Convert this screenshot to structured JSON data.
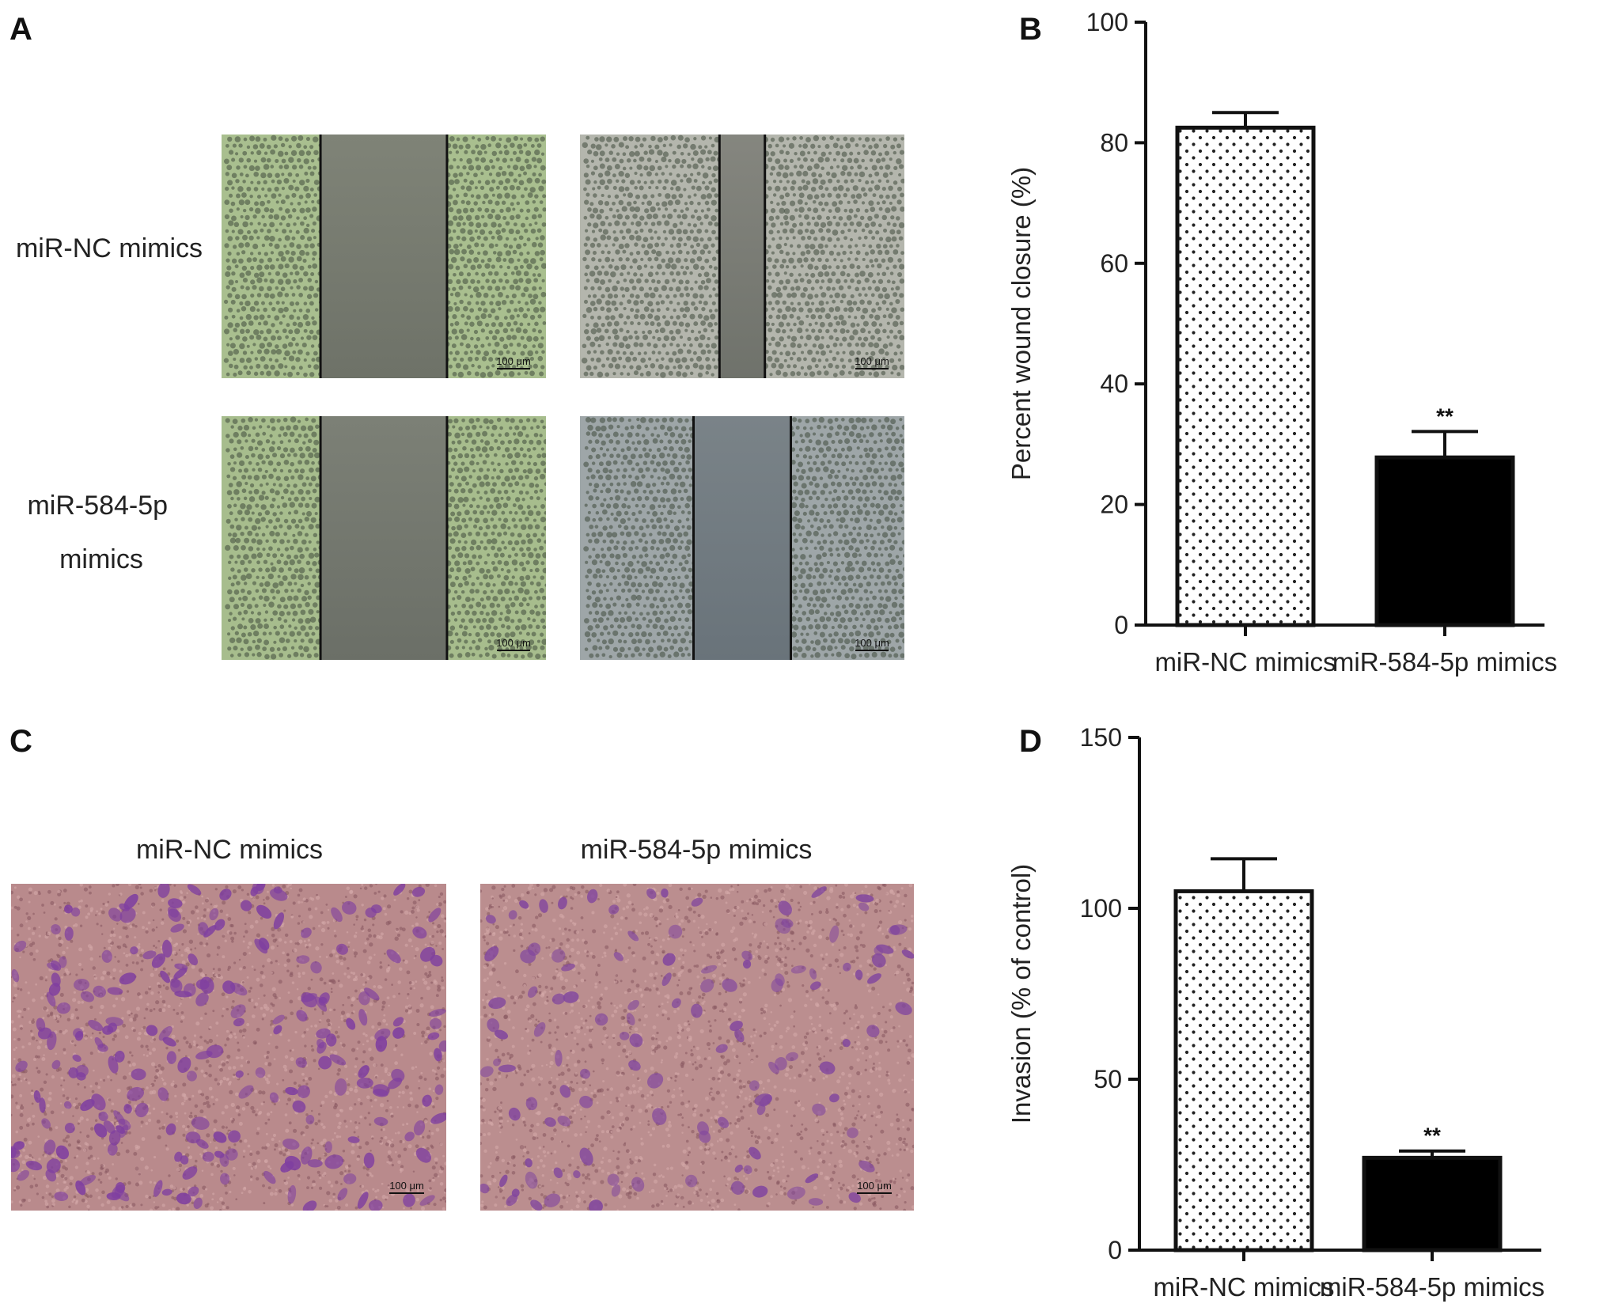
{
  "panels": {
    "a": {
      "letter": "A",
      "rows": [
        {
          "label_lines": [
            "miR-NC mimics"
          ]
        },
        {
          "label_lines": [
            "miR-584-5p",
            "mimics"
          ]
        }
      ],
      "images": [
        {
          "gap_colors": [
            "#7f8377",
            "#6e7268"
          ],
          "cell_tone": "#a9bf8f",
          "scale_label": "100 μm",
          "gap_fraction": 0.39
        },
        {
          "gap_colors": [
            "#85867f",
            "#6f726b"
          ],
          "cell_tone": "#b4b6ad",
          "scale_label": "100 μm",
          "gap_fraction": 0.14
        },
        {
          "gap_colors": [
            "#7c8076",
            "#6b6f67"
          ],
          "cell_tone": "#a7bd8d",
          "scale_label": "100 μm",
          "gap_fraction": 0.39
        },
        {
          "gap_colors": [
            "#7a8388",
            "#69737a"
          ],
          "cell_tone": "#9ea6a8",
          "scale_label": "100 μm",
          "gap_fraction": 0.3
        }
      ]
    },
    "c": {
      "letter": "C",
      "columns": [
        "miR-NC mimics",
        "miR-584-5p mimics"
      ],
      "images": [
        {
          "bg_color": "#b98a8c",
          "cell_color": "#7f3fa0",
          "scale_label": "100 μm",
          "cell_count": 230
        },
        {
          "bg_color": "#bb8e8f",
          "cell_color": "#82479e",
          "scale_label": "100 μm",
          "cell_count": 120
        }
      ]
    }
  },
  "chart_data": [
    {
      "panel_letter": "B",
      "type": "bar",
      "categories": [
        "miR-NC mimics",
        "miR-584-5p mimics"
      ],
      "values": [
        82.5,
        27.8
      ],
      "errors": [
        2.5,
        4.3
      ],
      "significance": [
        "",
        "**"
      ],
      "ylabel": "Percent wound closure (%)",
      "ylim": [
        0,
        100
      ],
      "yticks": [
        0,
        20,
        40,
        60,
        80,
        100
      ],
      "fills": [
        "dotted",
        "#000000"
      ]
    },
    {
      "panel_letter": "D",
      "type": "bar",
      "categories": [
        "miR-NC mimics",
        "miR-584-5p mimics"
      ],
      "values": [
        105,
        27
      ],
      "errors": [
        9.5,
        2
      ],
      "significance": [
        "",
        "**"
      ],
      "ylabel": "Invasion (% of control)",
      "ylim": [
        0,
        150
      ],
      "yticks": [
        0,
        50,
        100,
        150
      ],
      "fills": [
        "dotted",
        "#000000"
      ]
    }
  ]
}
